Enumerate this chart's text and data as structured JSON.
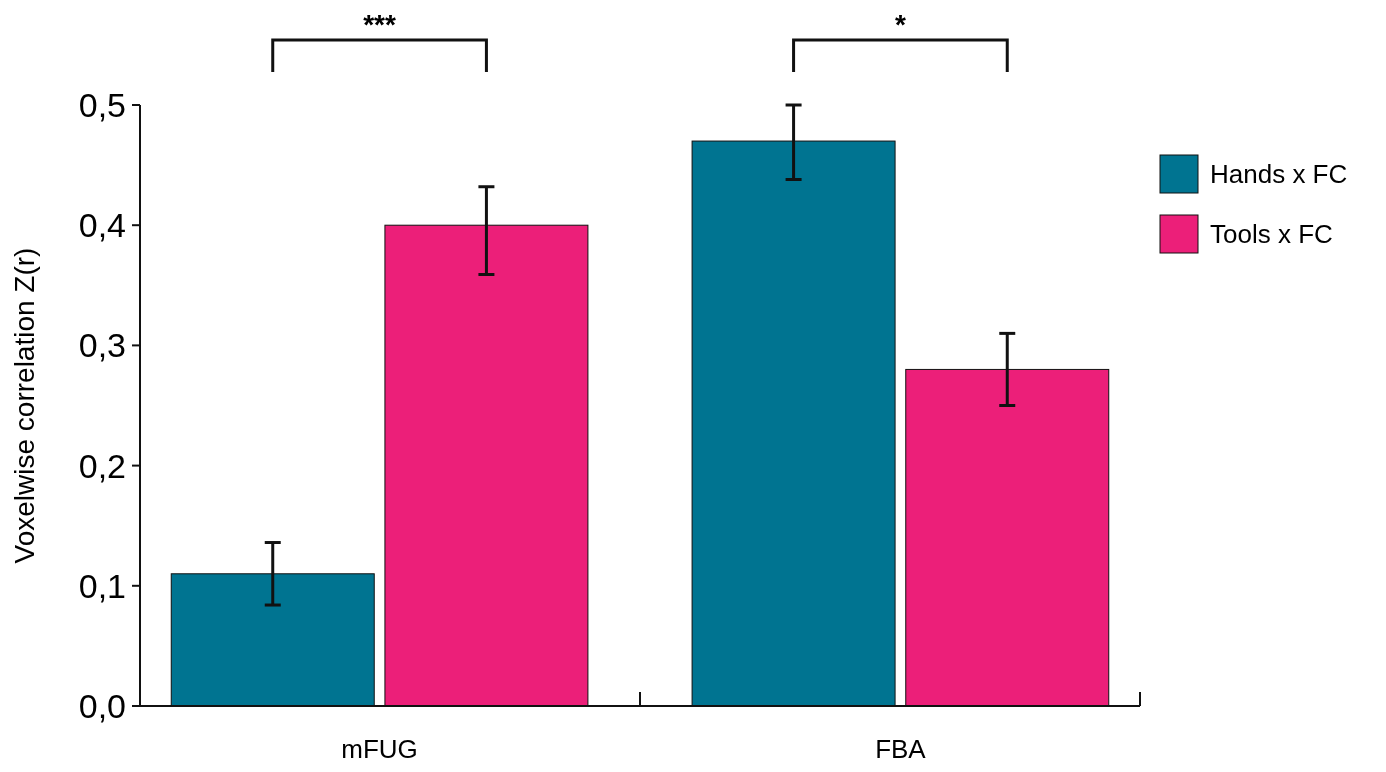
{
  "chart_data": {
    "type": "bar",
    "categories": [
      "mFUG",
      "FBA"
    ],
    "ylabel": "Voxelwise correlation Z(r)",
    "ylim": [
      0,
      0.5
    ],
    "yticks": [
      {
        "value": 0,
        "label": "0,0"
      },
      {
        "value": 0.1,
        "label": "0,1"
      },
      {
        "value": 0.2,
        "label": "0,2"
      },
      {
        "value": 0.3,
        "label": "0,3"
      },
      {
        "value": 0.4,
        "label": "0,4"
      },
      {
        "value": 0.5,
        "label": "0,5"
      }
    ],
    "series": [
      {
        "name": "Hands x FC",
        "color": "#007491",
        "values": [
          0.11,
          0.47
        ],
        "errors": [
          [
            0.084,
            0.136
          ],
          [
            0.438,
            0.5
          ]
        ]
      },
      {
        "name": "Tools x FC",
        "color": "#ec1f79",
        "values": [
          0.4,
          0.28
        ],
        "errors": [
          [
            0.359,
            0.432
          ],
          [
            0.25,
            0.31
          ]
        ]
      }
    ],
    "annotations": [
      "***",
      "*"
    ],
    "legend": "right",
    "grid": false
  }
}
